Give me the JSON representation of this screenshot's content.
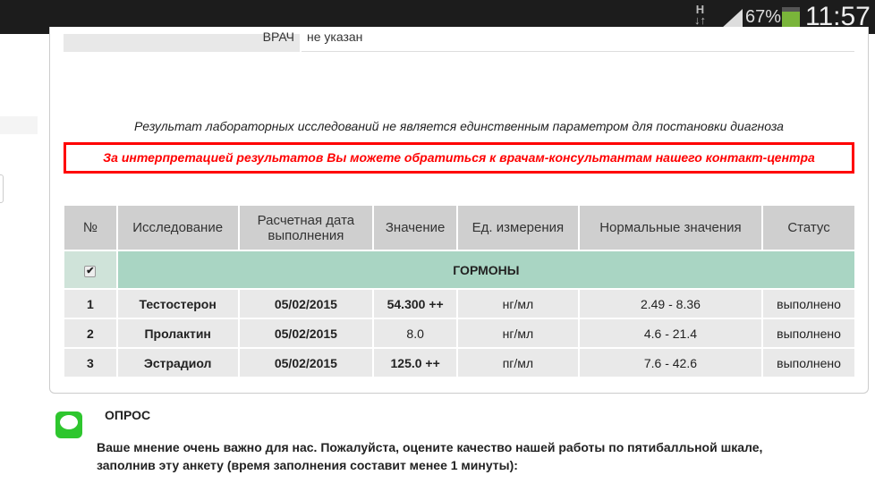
{
  "status_bar": {
    "network": "H",
    "battery": "67%",
    "time": "11:57",
    "battery_color": "#7ab53a"
  },
  "doctor": {
    "label": "ВРАЧ",
    "value": "не указан"
  },
  "notice": "Результат лабораторных исследований не является единственным параметром для постановки диагноза",
  "contact_notice": "За интерпретацией результатов Вы можете обратиться к врачам-консультантам нашего контакт-центра",
  "table": {
    "headers": [
      "№",
      "Исследование",
      "Расчетная дата выполнения",
      "Значение",
      "Ед. измерения",
      "Нормальные значения",
      "Статус"
    ],
    "group": {
      "name": "ГОРМОНЫ",
      "checked": true,
      "color": "#a9d5c3"
    },
    "rows": [
      {
        "n": "1",
        "test": "Тестостерон",
        "date": "05/02/2015",
        "value": "54.300 ++",
        "unit": "нг/мл",
        "norm": "2.49 - 8.36",
        "status": "выполнено"
      },
      {
        "n": "2",
        "test": "Пролактин",
        "date": "05/02/2015",
        "value": "8.0",
        "unit": "нг/мл",
        "norm": "4.6 - 21.4",
        "status": "выполнено"
      },
      {
        "n": "3",
        "test": "Эстрадиол",
        "date": "05/02/2015",
        "value": "125.0 ++",
        "unit": "пг/мл",
        "norm": "7.6 - 42.6",
        "status": "выполнено"
      }
    ]
  },
  "survey": {
    "title": "ОПРОС",
    "text": "Ваше мнение очень важно для нас. Пожалуйста, оцените качество нашей работы по пятибалльной шкале, заполнив эту анкету (время заполнения составит менее 1 минуты):",
    "icon": "chat-bubble-icon"
  }
}
